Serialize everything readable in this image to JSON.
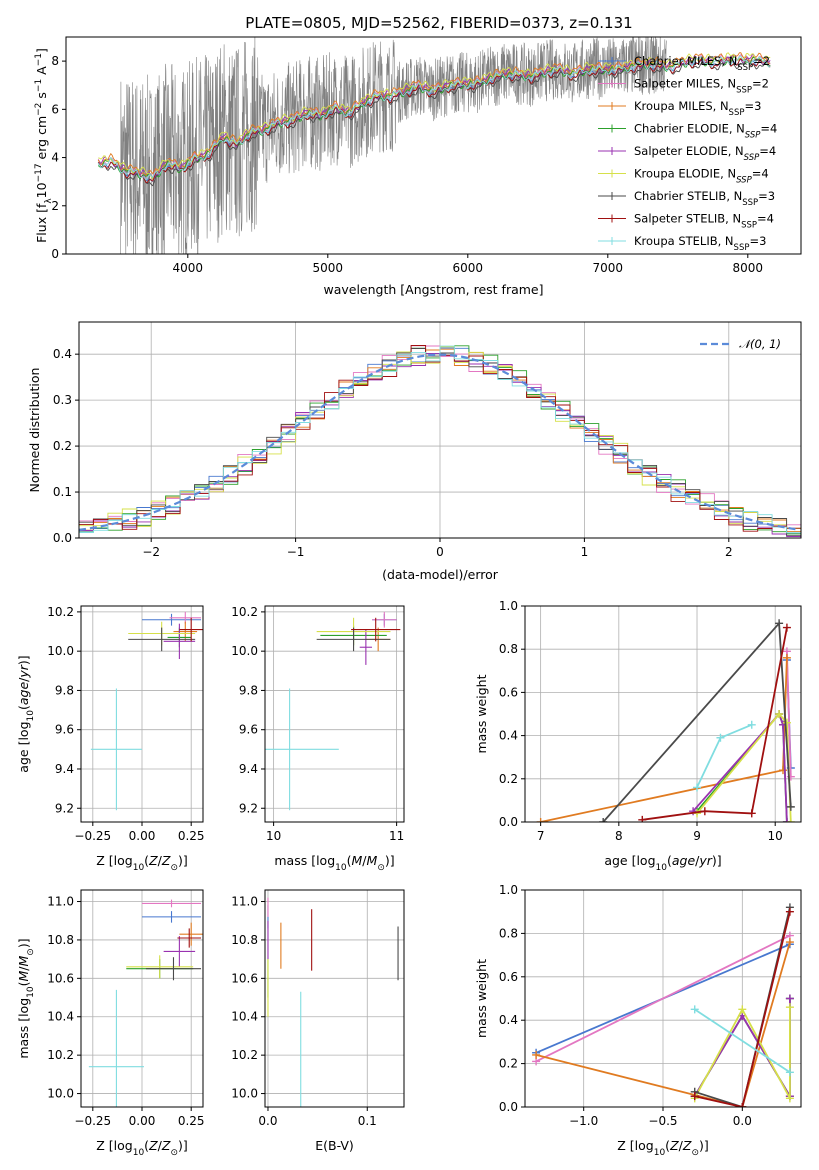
{
  "figure_title": "PLATE=0805, MJD=52562, FIBERID=0373, z=0.131",
  "chart_data": [
    {
      "type": "line",
      "name": "spectrum",
      "xlabel": "wavelength [Angstrom, rest frame]",
      "ylabel": "Flux [f_λ 10^-17 erg cm^-2 s^-1 A^-1]",
      "xlim": [
        3130,
        8380
      ],
      "ylim": [
        0,
        9
      ],
      "xticks": [
        4000,
        5000,
        6000,
        7000,
        8000
      ],
      "yticks": [
        0,
        2,
        4,
        6,
        8
      ],
      "grid": false,
      "legend_position": "top-right",
      "data_color": "#808080",
      "series": [
        {
          "name": "Chabrier MILES, N_SSP=2",
          "color": "#4878cf",
          "marker": "|"
        },
        {
          "name": "Salpeter MILES, N_SSP=2",
          "color": "#e377c2",
          "marker": "|"
        },
        {
          "name": "Kroupa MILES, N_SSP=3",
          "color": "#e07b21",
          "marker": "|"
        },
        {
          "name": "Chabrier ELODIE, N_SSP=4",
          "color": "#2ca02c",
          "marker": "|"
        },
        {
          "name": "Salpeter ELODIE, N_SSP=4",
          "color": "#9932b0",
          "marker": "|"
        },
        {
          "name": "Kroupa ELODIE, N_SSP=4",
          "color": "#d6e04a",
          "marker": "|"
        },
        {
          "name": "Chabrier STELIB, N_SSP=3",
          "color": "#4a4a4a",
          "marker": "|"
        },
        {
          "name": "Salpeter STELIB, N_SSP=4",
          "color": "#a01010",
          "marker": "|"
        },
        {
          "name": "Kroupa STELIB, N_SSP=3",
          "color": "#80dde0",
          "marker": "|"
        }
      ],
      "model_continuum": {
        "x": [
          3370,
          3450,
          3550,
          3650,
          3750,
          3850,
          3950,
          4050,
          4150,
          4250,
          4350,
          4450,
          4550,
          4650,
          4750,
          4850,
          4950,
          5050,
          5150,
          5250,
          5350,
          5450,
          5550,
          5650,
          5750,
          5850,
          5950,
          6050,
          6150,
          6250,
          6350,
          6450,
          6550,
          6650,
          6750,
          6850,
          6950,
          7050,
          7150,
          7250,
          7350,
          7450,
          7550,
          7650,
          7750,
          7850,
          7950,
          8050,
          8150
        ],
        "y": [
          3.8,
          3.9,
          3.5,
          3.4,
          3.2,
          3.8,
          3.6,
          4.0,
          4.2,
          4.9,
          4.6,
          5.1,
          5.2,
          5.5,
          5.6,
          5.9,
          5.8,
          6.1,
          5.9,
          6.3,
          6.6,
          6.6,
          6.8,
          7.0,
          6.8,
          7.0,
          7.1,
          7.1,
          7.3,
          7.5,
          7.5,
          7.4,
          7.6,
          7.7,
          7.5,
          7.7,
          7.7,
          7.7,
          7.8,
          7.9,
          7.9,
          7.8,
          8.0,
          8.1,
          8.0,
          8.1,
          8.1,
          8.1,
          8.0
        ]
      }
    },
    {
      "type": "histogram",
      "name": "residuals",
      "xlabel": "(data-model)/error",
      "ylabel": "Normed distribution",
      "xlim": [
        -2.5,
        2.5
      ],
      "ylim": [
        0,
        0.47
      ],
      "xticks": [
        -2,
        -1,
        0,
        1,
        2
      ],
      "yticks": [
        0.0,
        0.1,
        0.2,
        0.3,
        0.4
      ],
      "grid": true,
      "legend_position": "top-right",
      "legend_label": "𝒩(0, 1)",
      "gaussian_color": "#5b8bd9",
      "bin_width": 0.1
    },
    {
      "type": "scatter",
      "name": "age-vs-Z",
      "xlabel": "Z [log10(Z/Z⊙)]",
      "ylabel": "age [log10(age/yr)]",
      "xlim": [
        -0.31,
        0.31
      ],
      "ylim": [
        9.13,
        10.23
      ],
      "xticks": [
        -0.25,
        0.0,
        0.25
      ],
      "yticks": [
        9.2,
        9.4,
        9.6,
        9.8,
        10.0,
        10.2
      ],
      "grid": true,
      "points": [
        {
          "x": 0.15,
          "y": 10.16,
          "xerr": 0.15,
          "yerr": 0.03,
          "color": "#4878cf"
        },
        {
          "x": 0.22,
          "y": 10.17,
          "xerr": 0.08,
          "yerr": 0.03,
          "color": "#e377c2"
        },
        {
          "x": 0.22,
          "y": 10.1,
          "xerr": 0.06,
          "yerr": 0.05,
          "color": "#e07b21"
        },
        {
          "x": 0.19,
          "y": 10.07,
          "xerr": 0.06,
          "yerr": 0.05,
          "color": "#2ca02c"
        },
        {
          "x": 0.19,
          "y": 10.05,
          "xerr": 0.08,
          "yerr": 0.09,
          "color": "#9932b0"
        },
        {
          "x": 0.1,
          "y": 10.09,
          "xerr": 0.17,
          "yerr": 0.06,
          "color": "#d6e04a"
        },
        {
          "x": 0.1,
          "y": 10.06,
          "xerr": 0.17,
          "yerr": 0.06,
          "color": "#4a4a4a"
        },
        {
          "x": 0.25,
          "y": 10.11,
          "xerr": 0.06,
          "yerr": 0.06,
          "color": "#a01010"
        },
        {
          "x": -0.13,
          "y": 9.5,
          "xerr": 0.13,
          "yerr": 0.31,
          "color": "#80dde0"
        }
      ]
    },
    {
      "type": "scatter",
      "name": "age-vs-mass",
      "xlabel": "mass [log10(M/M⊙)]",
      "ylabel": "",
      "xlim": [
        9.93,
        11.06
      ],
      "ylim": [
        9.13,
        10.23
      ],
      "xticks": [
        10,
        11
      ],
      "yticks": [
        9.2,
        9.4,
        9.6,
        9.8,
        10.0,
        10.2
      ],
      "grid": true,
      "points": [
        {
          "x": 10.9,
          "y": 10.16,
          "xerr": 0.1,
          "yerr": 0.03,
          "color": "#4878cf"
        },
        {
          "x": 10.9,
          "y": 10.16,
          "xerr": 0.1,
          "yerr": 0.04,
          "color": "#e377c2"
        },
        {
          "x": 10.85,
          "y": 10.06,
          "xerr": 0.1,
          "yerr": 0.06,
          "color": "#e07b21"
        },
        {
          "x": 10.65,
          "y": 10.08,
          "xerr": 0.27,
          "yerr": 0.05,
          "color": "#2ca02c"
        },
        {
          "x": 10.75,
          "y": 10.02,
          "xerr": 0.05,
          "yerr": 0.09,
          "color": "#9932b0"
        },
        {
          "x": 10.65,
          "y": 10.1,
          "xerr": 0.3,
          "yerr": 0.07,
          "color": "#d6e04a"
        },
        {
          "x": 10.65,
          "y": 10.06,
          "xerr": 0.3,
          "yerr": 0.06,
          "color": "#4a4a4a"
        },
        {
          "x": 10.83,
          "y": 10.11,
          "xerr": 0.2,
          "yerr": 0.06,
          "color": "#a01010"
        },
        {
          "x": 10.13,
          "y": 9.5,
          "xerr": 0.4,
          "yerr": 0.31,
          "color": "#80dde0"
        }
      ]
    },
    {
      "type": "line",
      "name": "weight-vs-age",
      "xlabel": "age [log10(age/yr)]",
      "ylabel": "mass weight",
      "xlim": [
        6.8,
        10.33
      ],
      "ylim": [
        0,
        1
      ],
      "xticks": [
        7,
        8,
        9,
        10
      ],
      "yticks": [
        0.0,
        0.2,
        0.4,
        0.6,
        0.8,
        1.0
      ],
      "grid": true,
      "series": [
        {
          "color": "#4878cf",
          "x": [
            10.15,
            10.2
          ],
          "y": [
            0.75,
            0.25
          ]
        },
        {
          "color": "#e377c2",
          "x": [
            10.15,
            10.2
          ],
          "y": [
            0.79,
            0.21
          ]
        },
        {
          "color": "#e07b21",
          "x": [
            7.0,
            10.1,
            10.15
          ],
          "y": [
            0.0,
            0.24,
            0.76
          ]
        },
        {
          "color": "#2ca02c",
          "x": [
            9.0,
            10.05,
            10.1,
            10.15
          ],
          "y": [
            0.05,
            0.5,
            0.45,
            0.0
          ]
        },
        {
          "color": "#9932b0",
          "x": [
            8.95,
            10.05,
            10.1,
            10.15
          ],
          "y": [
            0.05,
            0.5,
            0.45,
            0.0
          ]
        },
        {
          "color": "#d6e04a",
          "x": [
            9.0,
            10.05,
            10.15,
            10.2
          ],
          "y": [
            0.04,
            0.5,
            0.46,
            0.0
          ]
        },
        {
          "color": "#4a4a4a",
          "x": [
            7.8,
            10.05,
            10.2
          ],
          "y": [
            0.0,
            0.92,
            0.07
          ]
        },
        {
          "color": "#a01010",
          "x": [
            8.3,
            9.1,
            9.7,
            10.15
          ],
          "y": [
            0.01,
            0.05,
            0.04,
            0.9
          ]
        },
        {
          "color": "#80dde0",
          "x": [
            9.0,
            9.3,
            9.7
          ],
          "y": [
            0.16,
            0.39,
            0.45
          ]
        }
      ]
    },
    {
      "type": "scatter",
      "name": "mass-vs-Z",
      "xlabel": "Z [log10(Z/Z⊙)]",
      "ylabel": "mass [log10(M/M⊙)]",
      "xlim": [
        -0.31,
        0.31
      ],
      "ylim": [
        9.93,
        11.06
      ],
      "xticks": [
        -0.25,
        0.0,
        0.25
      ],
      "yticks": [
        10.0,
        10.2,
        10.4,
        10.6,
        10.8,
        11.0
      ],
      "grid": true,
      "points": [
        {
          "x": 0.15,
          "y": 10.92,
          "xerr": 0.15,
          "yerr": 0.03,
          "color": "#4878cf"
        },
        {
          "x": 0.15,
          "y": 10.99,
          "xerr": 0.15,
          "yerr": 0.02,
          "color": "#e377c2"
        },
        {
          "x": 0.25,
          "y": 10.83,
          "xerr": 0.06,
          "yerr": 0.06,
          "color": "#e07b21"
        },
        {
          "x": 0.09,
          "y": 10.65,
          "xerr": 0.17,
          "yerr": 0.05,
          "color": "#2ca02c"
        },
        {
          "x": 0.19,
          "y": 10.74,
          "xerr": 0.08,
          "yerr": 0.08,
          "color": "#9932b0"
        },
        {
          "x": 0.09,
          "y": 10.66,
          "xerr": 0.17,
          "yerr": 0.06,
          "color": "#d6e04a"
        },
        {
          "x": 0.16,
          "y": 10.65,
          "xerr": 0.14,
          "yerr": 0.06,
          "color": "#4a4a4a"
        },
        {
          "x": 0.24,
          "y": 10.81,
          "xerr": 0.06,
          "yerr": 0.05,
          "color": "#a01010"
        },
        {
          "x": -0.13,
          "y": 10.14,
          "xerr": 0.14,
          "yerr": 0.4,
          "color": "#80dde0"
        }
      ]
    },
    {
      "type": "scatter",
      "name": "mass-vs-EBV",
      "xlabel": "E(B-V)",
      "ylabel": "",
      "xlim": [
        -0.003,
        0.137
      ],
      "ylim": [
        9.93,
        11.06
      ],
      "xticks": [
        0.0,
        0.1
      ],
      "yticks": [
        10.0,
        10.2,
        10.4,
        10.6,
        10.8,
        11.0
      ],
      "grid": true,
      "points": [
        {
          "x": 0.0,
          "y": 10.92,
          "xerr": 0.0,
          "yerr": 0.06,
          "color": "#4878cf"
        },
        {
          "x": 0.0,
          "y": 10.97,
          "xerr": 0.0,
          "yerr": 0.05,
          "color": "#e377c2"
        },
        {
          "x": 0.013,
          "y": 10.77,
          "xerr": 0.0,
          "yerr": 0.12,
          "color": "#e07b21"
        },
        {
          "x": 0.0,
          "y": 10.6,
          "xerr": 0.0,
          "yerr": 0.1,
          "color": "#2ca02c"
        },
        {
          "x": 0.0,
          "y": 10.8,
          "xerr": 0.0,
          "yerr": 0.1,
          "color": "#9932b0"
        },
        {
          "x": 0.0,
          "y": 10.55,
          "xerr": 0.0,
          "yerr": 0.15,
          "color": "#d6e04a"
        },
        {
          "x": 0.131,
          "y": 10.73,
          "xerr": 0.0,
          "yerr": 0.14,
          "color": "#4a4a4a"
        },
        {
          "x": 0.044,
          "y": 10.8,
          "xerr": 0.0,
          "yerr": 0.16,
          "color": "#a01010"
        },
        {
          "x": 0.033,
          "y": 10.15,
          "xerr": 0.0,
          "yerr": 0.38,
          "color": "#80dde0"
        }
      ]
    },
    {
      "type": "line",
      "name": "weight-vs-Z",
      "xlabel": "Z [log10(Z/Z⊙)]",
      "ylabel": "mass weight",
      "xlim": [
        -1.37,
        0.37
      ],
      "ylim": [
        0,
        1
      ],
      "xticks": [
        -1.0,
        -0.5,
        0.0
      ],
      "yticks": [
        0.0,
        0.2,
        0.4,
        0.6,
        0.8,
        1.0
      ],
      "grid": true,
      "series": [
        {
          "color": "#4878cf",
          "x": [
            -1.3,
            0.3
          ],
          "y": [
            0.25,
            0.75
          ]
        },
        {
          "color": "#e377c2",
          "x": [
            -1.3,
            0.3
          ],
          "y": [
            0.21,
            0.79
          ]
        },
        {
          "color": "#e07b21",
          "x": [
            -1.3,
            0.0,
            0.3
          ],
          "y": [
            0.24,
            0.0,
            0.76
          ]
        },
        {
          "color": "#2ca02c",
          "x": [
            -0.3,
            0.0,
            0.3,
            0.3
          ],
          "y": [
            0.05,
            0.42,
            0.05,
            0.5
          ]
        },
        {
          "color": "#9932b0",
          "x": [
            -0.3,
            0.0,
            0.3,
            0.3
          ],
          "y": [
            0.05,
            0.42,
            0.05,
            0.5
          ]
        },
        {
          "color": "#d6e04a",
          "x": [
            -0.3,
            0.0,
            0.3,
            0.3
          ],
          "y": [
            0.04,
            0.45,
            0.04,
            0.46
          ]
        },
        {
          "color": "#4a4a4a",
          "x": [
            -0.3,
            0.0,
            0.3
          ],
          "y": [
            0.07,
            0.0,
            0.92
          ]
        },
        {
          "color": "#a01010",
          "x": [
            -0.3,
            0.0,
            0.3
          ],
          "y": [
            0.05,
            0.0,
            0.9
          ]
        },
        {
          "color": "#80dde0",
          "x": [
            -0.3,
            0.3
          ],
          "y": [
            0.45,
            0.16
          ]
        }
      ]
    }
  ]
}
